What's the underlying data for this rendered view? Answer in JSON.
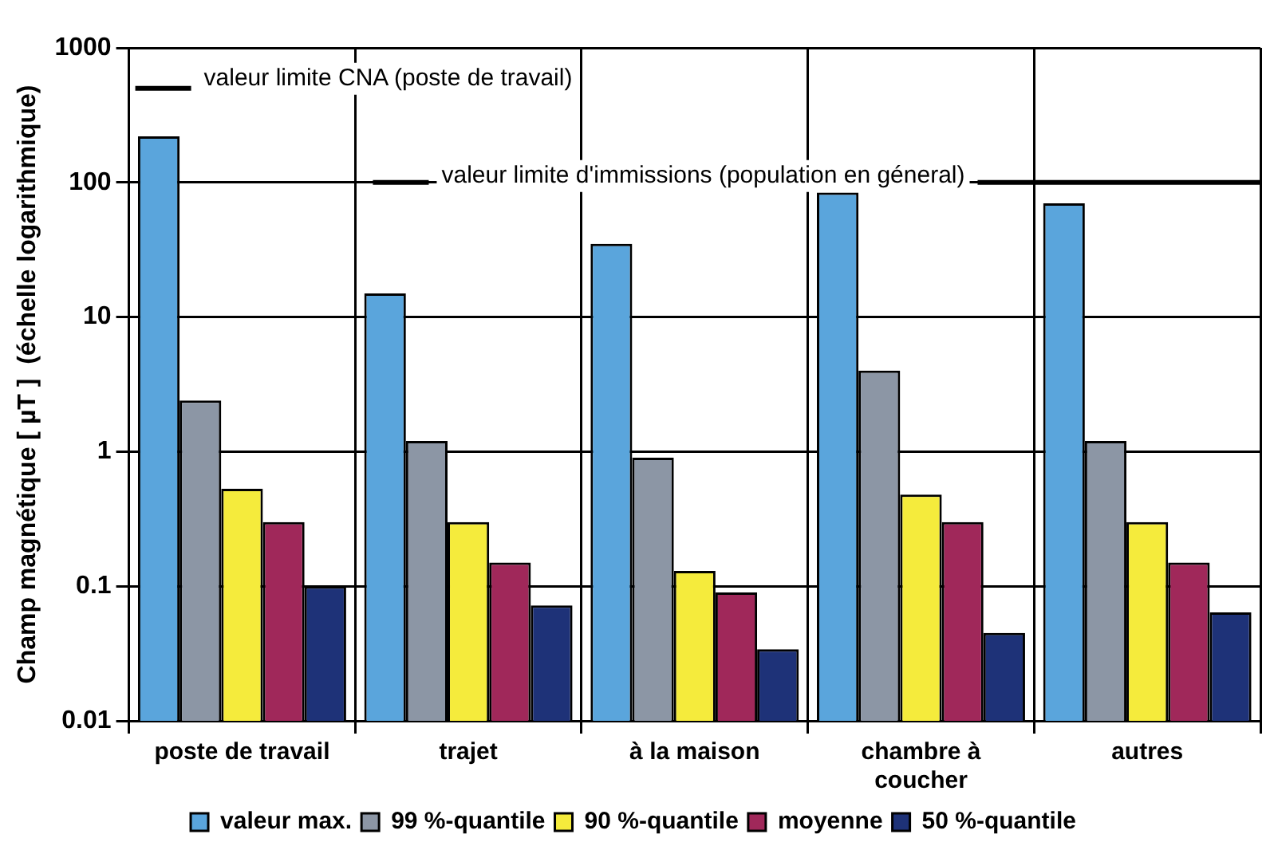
{
  "chart_data": {
    "type": "bar",
    "ylabel": "Champ magnétique [ µT ]  (échelle logarithmique)",
    "categories": [
      "poste de travail",
      "trajet",
      "à la maison",
      "chambre à coucher",
      "autres"
    ],
    "series": [
      {
        "name": "valeur max.",
        "color": "#5aa5dc",
        "values": [
          220,
          15,
          35,
          84,
          70
        ]
      },
      {
        "name": "99 %-quantile",
        "color": "#8c96a5",
        "values": [
          2.4,
          1.2,
          0.9,
          4,
          1.2
        ]
      },
      {
        "name": "90 %-quantile",
        "color": "#f5eb3c",
        "values": [
          0.53,
          0.3,
          0.13,
          0.48,
          0.3
        ]
      },
      {
        "name": "moyenne",
        "color": "#a0285a",
        "values": [
          0.3,
          0.15,
          0.09,
          0.3,
          0.15
        ]
      },
      {
        "name": "50 %-quantile",
        "color": "#1e3278",
        "values": [
          0.1,
          0.072,
          0.034,
          0.045,
          0.064
        ]
      }
    ],
    "log": "y",
    "ylim": [
      0.01,
      1000
    ],
    "yticks": [
      0.01,
      0.1,
      1,
      10,
      100,
      1000
    ],
    "grid": true,
    "legend": "bottom",
    "ref_lines": [
      {
        "axis": "y",
        "value": 500,
        "label": "valeur limite CNA (poste de travail)"
      },
      {
        "axis": "y",
        "value": 100,
        "label": "valeur limite d'immissions (population en géneral)"
      }
    ]
  }
}
